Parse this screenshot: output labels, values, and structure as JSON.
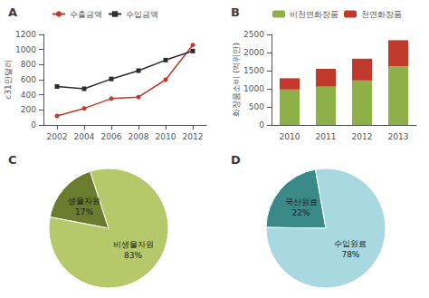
{
  "chart_data": [
    {
      "type": "line",
      "title": "A",
      "x": [
        2002,
        2004,
        2006,
        2008,
        2010,
        2012
      ],
      "xlim": [
        2001,
        2013
      ],
      "xticks": [
        2002,
        2004,
        2006,
        2008,
        2010,
        2012
      ],
      "ylabel": "c31만달러",
      "ylim": [
        0,
        1200
      ],
      "yticks": [
        0,
        200,
        400,
        600,
        800,
        1000,
        1200
      ],
      "grid": false,
      "legend": "upper left",
      "series": [
        {
          "name": "수출금액",
          "color": "#c0392b",
          "marker": "circle",
          "values": [
            120,
            220,
            350,
            370,
            600,
            1060
          ]
        },
        {
          "name": "수입금액",
          "color": "#2c2c2c",
          "marker": "square",
          "values": [
            510,
            480,
            610,
            720,
            860,
            980
          ]
        }
      ]
    },
    {
      "type": "bar",
      "title": "B",
      "stacked": true,
      "categories": [
        "2010",
        "2011",
        "2012",
        "2013"
      ],
      "ylabel": "화장품소비 (억위안)",
      "ylim": [
        0,
        2500
      ],
      "yticks": [
        0,
        500,
        1000,
        1500,
        2000,
        2500
      ],
      "grid": false,
      "legend": "upper left",
      "series": [
        {
          "name": "비천연화장품",
          "color": "#8db049",
          "values": [
            980,
            1060,
            1230,
            1620
          ]
        },
        {
          "name": "천연화장품",
          "color": "#c0392b",
          "values": [
            310,
            490,
            600,
            720
          ]
        }
      ]
    },
    {
      "type": "pie",
      "title": "C",
      "categories": [
        "생물자원\n17%",
        "비생물자원\n83%"
      ],
      "values": [
        17,
        83
      ],
      "colors": [
        "#6b7c2e",
        "#b5c96a"
      ]
    },
    {
      "type": "pie",
      "title": "D",
      "categories": [
        "국산원료\n22%",
        "수입원료\n78%"
      ],
      "values": [
        22,
        78
      ],
      "colors": [
        "#3a8a8a",
        "#a8d8e0"
      ]
    }
  ]
}
